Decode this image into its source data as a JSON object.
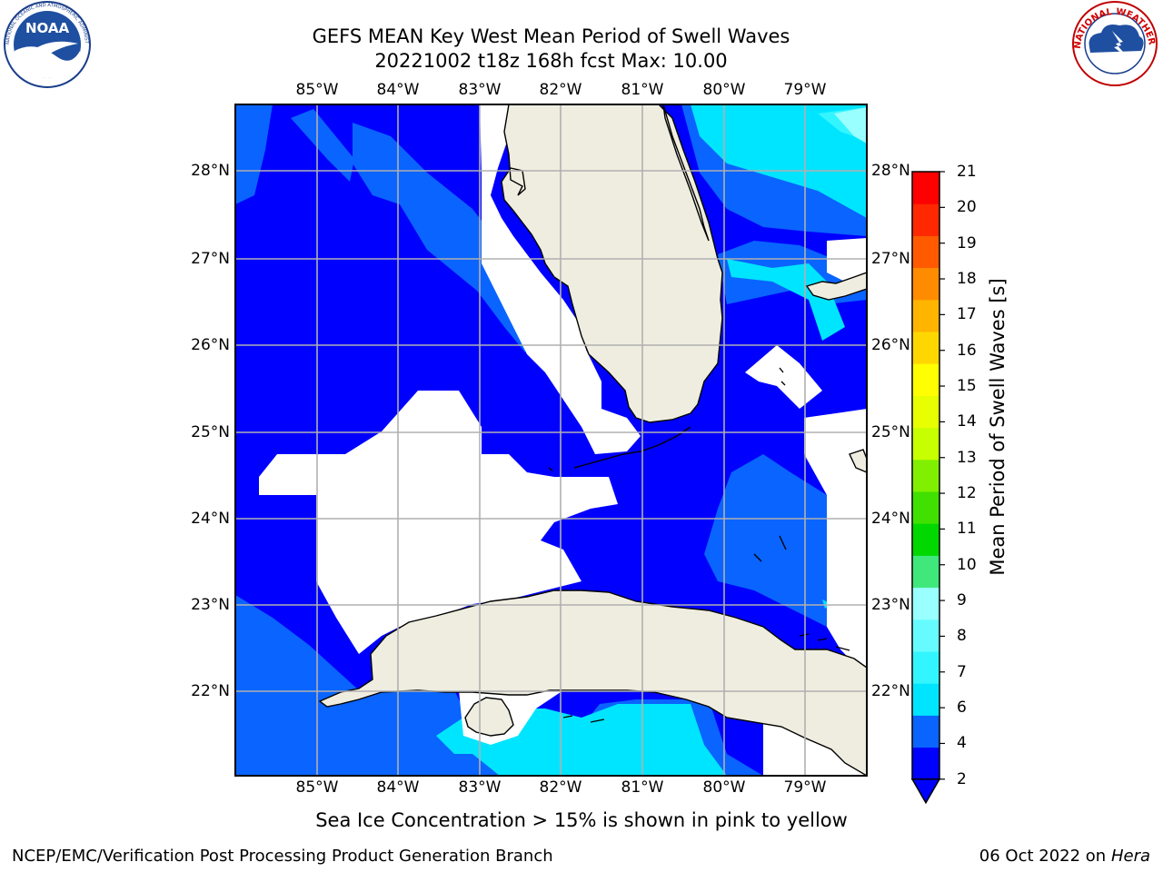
{
  "title_line1": "GEFS MEAN Key West Mean Period of Swell Waves",
  "title_line2": "20221002 t18z 168h fcst   Max: 10.00",
  "note": "Sea Ice Concentration > 15% is shown in pink to yellow",
  "footer": {
    "left": "NCEP/EMC/Verification Post Processing Product Generation Branch",
    "date": "06 Oct 2022 on ",
    "machine": "Hera"
  },
  "lon_labels": [
    "85°W",
    "84°W",
    "83°W",
    "82°W",
    "81°W",
    "80°W",
    "79°W"
  ],
  "lat_labels": [
    "28°N",
    "27°N",
    "26°N",
    "25°N",
    "24°N",
    "23°N",
    "22°N"
  ],
  "colorbar": {
    "title": "Mean Period of Swell Waves [s]",
    "ticks": [
      "2",
      "4",
      "6",
      "7",
      "8",
      "9",
      "10",
      "11",
      "12",
      "13",
      "14",
      "15",
      "16",
      "17",
      "18",
      "19",
      "20",
      "21"
    ],
    "colors": [
      "#0000ff",
      "#0a64ff",
      "#00e5ff",
      "#33f5ff",
      "#66fcff",
      "#99ffff",
      "#40e87c",
      "#00d800",
      "#40e000",
      "#80f000",
      "#c8ff00",
      "#e8ff00",
      "#ffff00",
      "#ffd700",
      "#ffb400",
      "#ff8c00",
      "#ff5a00",
      "#ff2800",
      "#ff0000"
    ]
  },
  "logos": {
    "noaa": "NOAA",
    "noaa_ring": "NATIONAL OCEANIC AND ATMOSPHERIC ADMINISTRATION · U.S. DEPARTMENT OF COMMERCE",
    "nws_ring": "NATIONAL WEATHER SERVICE"
  },
  "colors": {
    "ocean_dark": "#0000ff",
    "ocean_mid": "#0a64ff",
    "ocean_cyan": "#00e5ff",
    "land": "#eeede0",
    "grid": "#b0b0b0"
  }
}
